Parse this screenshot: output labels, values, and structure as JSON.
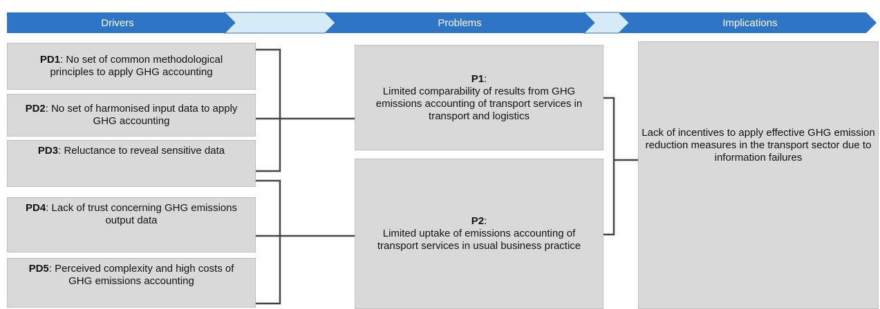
{
  "header": {
    "stages": [
      "Drivers",
      "Problems",
      "Implications"
    ]
  },
  "drivers": [
    {
      "id": "PD1",
      "text": ": No set of common methodological principles  to apply GHG accounting"
    },
    {
      "id": "PD2",
      "text": ": No set of harmonised input data to apply  GHG accounting"
    },
    {
      "id": "PD3",
      "text": ": Reluctance to reveal sensitive data"
    },
    {
      "id": "PD4",
      "text": ": Lack of trust concerning GHG emissions output data"
    },
    {
      "id": "PD5",
      "text": ": Perceived complexity  and high costs of GHG emissions accounting"
    }
  ],
  "problems": [
    {
      "id": "P1",
      "text": ":\nLimited comparability of results from GHG emissions accounting of transport services in transport and logistics"
    },
    {
      "id": "P2",
      "text": ":\nLimited uptake of emissions accounting of transport services in usual business practice"
    }
  ],
  "implication": {
    "text": "Lack of incentives to apply effective GHG emission reduction measures in the transport sector due to information failures"
  }
}
